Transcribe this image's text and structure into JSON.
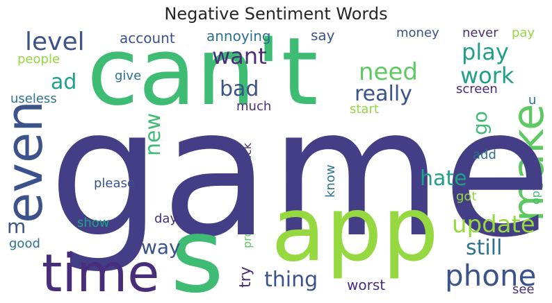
{
  "title": "Negative Sentiment Words",
  "words": [
    {
      "text": "game",
      "color": "#433e85"
    },
    {
      "text": "can't",
      "color": "#3fbc73"
    },
    {
      "text": "app",
      "color": "#95d840"
    },
    {
      "text": "s",
      "color": "#3fbc73"
    },
    {
      "text": "time",
      "color": "#472d7b"
    },
    {
      "text": "even",
      "color": "#3b528b"
    },
    {
      "text": "make",
      "color": "#5ec962"
    },
    {
      "text": "phone",
      "color": "#3b528b"
    },
    {
      "text": "update",
      "color": "#95d840"
    },
    {
      "text": "level",
      "color": "#3b528b"
    },
    {
      "text": "want",
      "color": "#472d7b"
    },
    {
      "text": "play",
      "color": "#1fa187"
    },
    {
      "text": "need",
      "color": "#5ec962"
    },
    {
      "text": "work",
      "color": "#1fa187"
    },
    {
      "text": "really",
      "color": "#3b528b"
    },
    {
      "text": "bad",
      "color": "#3b528b"
    },
    {
      "text": "ad",
      "color": "#1fa187"
    },
    {
      "text": "thing",
      "color": "#3b528b"
    },
    {
      "text": "still",
      "color": "#2c728e"
    },
    {
      "text": "hate",
      "color": "#1fa187"
    },
    {
      "text": "way",
      "color": "#3b528b"
    },
    {
      "text": "new",
      "color": "#3fbc73"
    },
    {
      "text": "go",
      "color": "#3fbc73"
    },
    {
      "text": "m",
      "color": "#3b528b"
    },
    {
      "text": "try",
      "color": "#472d7b"
    },
    {
      "text": "worst",
      "color": "#472d7b"
    },
    {
      "text": "account",
      "color": "#3b528b"
    },
    {
      "text": "annoying",
      "color": "#2c728e"
    },
    {
      "text": "say",
      "color": "#3b528b"
    },
    {
      "text": "money",
      "color": "#3b528b"
    },
    {
      "text": "never",
      "color": "#472d7b"
    },
    {
      "text": "pay",
      "color": "#95d840"
    },
    {
      "text": "people",
      "color": "#95d840"
    },
    {
      "text": "give",
      "color": "#2c728e"
    },
    {
      "text": "useless",
      "color": "#2c728e"
    },
    {
      "text": "much",
      "color": "#472d7b"
    },
    {
      "text": "screen",
      "color": "#472d7b"
    },
    {
      "text": "start",
      "color": "#95d840"
    },
    {
      "text": "u",
      "color": "#2c728e"
    },
    {
      "text": "please",
      "color": "#3b528b"
    },
    {
      "text": "show",
      "color": "#1fa187"
    },
    {
      "text": "day",
      "color": "#472d7b"
    },
    {
      "text": "good",
      "color": "#2c728e"
    },
    {
      "text": "back",
      "color": "#472d7b"
    },
    {
      "text": "problem",
      "color": "#5ec962"
    },
    {
      "text": "know",
      "color": "#2c728e"
    },
    {
      "text": "add",
      "color": "#2c728e"
    },
    {
      "text": "got",
      "color": "#95d840"
    },
    {
      "text": "option",
      "color": "#3fbc73"
    },
    {
      "text": "see",
      "color": "#472d7b"
    }
  ]
}
